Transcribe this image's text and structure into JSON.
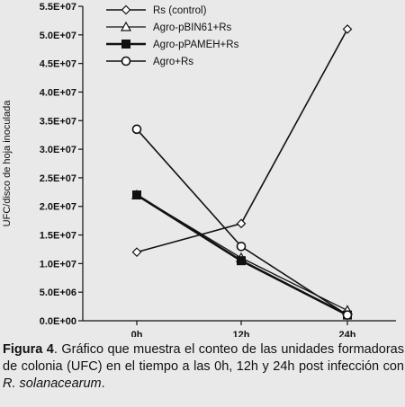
{
  "chart_data": {
    "type": "line",
    "ylabel": "UFC/disco de hoja inoculada",
    "xlabel": "",
    "categories": [
      "0h",
      "12h",
      "24h"
    ],
    "ylim": [
      0,
      55000000
    ],
    "yticks": [
      {
        "v": 0,
        "label": "0.0E+00"
      },
      {
        "v": 5000000,
        "label": "5.0E+06"
      },
      {
        "v": 10000000,
        "label": "1.0E+07"
      },
      {
        "v": 15000000,
        "label": "1.5E+07"
      },
      {
        "v": 20000000,
        "label": "2.0E+07"
      },
      {
        "v": 25000000,
        "label": "2.5E+07"
      },
      {
        "v": 30000000,
        "label": "3.0E+07"
      },
      {
        "v": 35000000,
        "label": "3.5E+07"
      },
      {
        "v": 40000000,
        "label": "4.0E+07"
      },
      {
        "v": 45000000,
        "label": "4.5E+07"
      },
      {
        "v": 50000000,
        "label": "5.0E+07"
      },
      {
        "v": 55000000,
        "label": "5.5E+07"
      }
    ],
    "legend_position": "top-right",
    "series": [
      {
        "name": "Rs (control)",
        "marker": "diamond",
        "values": [
          12000000,
          17000000,
          51000000
        ]
      },
      {
        "name": "Agro-pBIN61+Rs",
        "marker": "triangle",
        "values": [
          22000000,
          11000000,
          1800000
        ]
      },
      {
        "name": "Agro-pPAMEH+Rs",
        "marker": "square",
        "values": [
          22000000,
          10500000,
          1000000
        ]
      },
      {
        "name": "Agro+Rs",
        "marker": "circle",
        "values": [
          33500000,
          13000000,
          1000000
        ]
      }
    ]
  },
  "caption": {
    "label": "Figura 4",
    "text_before": ". Gráfico que muestra el conteo de las unidades formadoras de colonia (UFC) en el tiempo a las 0h, 12h y 24h post infección con ",
    "species": "R. solanacearum",
    "text_after": "."
  },
  "colors": {
    "line": "#111111",
    "background": "#e9e9e9"
  }
}
